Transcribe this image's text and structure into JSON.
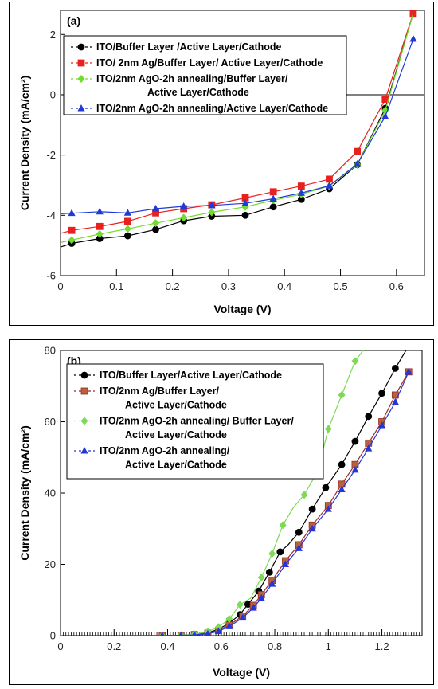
{
  "chart_data": [
    {
      "type": "line",
      "panel_label": "(a)",
      "xlabel": "Voltage (V)",
      "ylabel": "Current Density (mA/cm²)",
      "xlim": [
        0,
        0.65
      ],
      "ylim": [
        -6,
        2.8
      ],
      "xticks": [
        0,
        0.1,
        0.2,
        0.3,
        0.4,
        0.5,
        0.6
      ],
      "xtick_labels": [
        "0",
        "0.1",
        "0.2",
        "0.3",
        "0.4",
        "0.5",
        "0.6"
      ],
      "yticks": [
        -6,
        -4,
        -2,
        0,
        2
      ],
      "ytick_labels": [
        "-6",
        "-4",
        "-2",
        "0",
        "2"
      ],
      "zero_line": true,
      "legend_position": "top-right",
      "series": [
        {
          "name": "ITO/Buffer Layer /Active Layer/Cathode",
          "name_lines": [
            "ITO/Buffer Layer /Active Layer/Cathode"
          ],
          "color": "#000000",
          "marker": "circle",
          "x": [
            0,
            0.02,
            0.07,
            0.12,
            0.17,
            0.22,
            0.27,
            0.33,
            0.38,
            0.43,
            0.48,
            0.53,
            0.58,
            0.63
          ],
          "y": [
            -5.05,
            -4.93,
            -4.77,
            -4.68,
            -4.47,
            -4.18,
            -4.03,
            -4.0,
            -3.72,
            -3.47,
            -3.12,
            -2.32,
            -0.45,
            2.7
          ],
          "markers": [
            false,
            true,
            true,
            true,
            true,
            true,
            true,
            true,
            true,
            true,
            true,
            true,
            true,
            false
          ]
        },
        {
          "name": "ITO/ 2nm Ag/Buffer Layer/ Active Layer/Cathode",
          "name_lines": [
            "ITO/ 2nm Ag/Buffer Layer/ Active Layer/Cathode"
          ],
          "color": "#e8201e",
          "marker": "square",
          "x": [
            0,
            0.02,
            0.07,
            0.12,
            0.17,
            0.22,
            0.27,
            0.33,
            0.38,
            0.43,
            0.48,
            0.53,
            0.58,
            0.63
          ],
          "y": [
            -4.6,
            -4.5,
            -4.37,
            -4.2,
            -3.92,
            -3.78,
            -3.65,
            -3.42,
            -3.22,
            -3.03,
            -2.8,
            -1.88,
            -0.15,
            2.7
          ],
          "markers": [
            false,
            true,
            true,
            true,
            true,
            true,
            true,
            true,
            true,
            true,
            true,
            true,
            true,
            true
          ]
        },
        {
          "name": "ITO/2nm AgO-2h annealing/Buffer Layer/ Active Layer/Cathode",
          "name_lines": [
            "ITO/2nm AgO-2h annealing/Buffer Layer/",
            "Active Layer/Cathode"
          ],
          "color": "#6fdc2e",
          "marker": "diamond",
          "x": [
            0,
            0.02,
            0.07,
            0.12,
            0.17,
            0.22,
            0.27,
            0.33,
            0.38,
            0.43,
            0.48,
            0.53,
            0.58,
            0.63
          ],
          "y": [
            -4.9,
            -4.82,
            -4.62,
            -4.45,
            -4.26,
            -4.08,
            -3.9,
            -3.72,
            -3.5,
            -3.3,
            -3.03,
            -2.32,
            -0.52,
            2.7
          ],
          "markers": [
            false,
            true,
            true,
            true,
            true,
            true,
            true,
            true,
            true,
            true,
            true,
            true,
            true,
            false
          ]
        },
        {
          "name": "ITO/2nm AgO-2h annealing/Active Layer/Cathode",
          "name_lines": [
            "ITO/2nm AgO-2h annealing/Active Layer/Cathode"
          ],
          "color": "#1f3ad8",
          "marker": "triangle",
          "x": [
            0,
            0.02,
            0.07,
            0.12,
            0.17,
            0.22,
            0.27,
            0.33,
            0.38,
            0.43,
            0.48,
            0.53,
            0.58,
            0.63
          ],
          "y": [
            -3.95,
            -3.93,
            -3.88,
            -3.92,
            -3.78,
            -3.7,
            -3.67,
            -3.6,
            -3.45,
            -3.26,
            -3.02,
            -2.3,
            -0.72,
            1.85
          ],
          "markers": [
            false,
            true,
            true,
            true,
            true,
            true,
            true,
            true,
            true,
            true,
            true,
            true,
            true,
            true
          ]
        }
      ]
    },
    {
      "type": "line",
      "panel_label": "(b)",
      "xlabel": "Voltage (V)",
      "ylabel": "Current Density (mA/cm²)",
      "xlim": [
        0,
        1.35
      ],
      "ylim": [
        0,
        80
      ],
      "xticks": [
        0,
        0.2,
        0.4,
        0.6,
        0.8,
        1.0,
        1.2
      ],
      "xtick_labels": [
        "0",
        "0.2",
        "0.4",
        "0.6",
        "0.8",
        "1",
        "1.2"
      ],
      "yticks": [
        0,
        20,
        40,
        60,
        80
      ],
      "ytick_labels": [
        "0",
        "20",
        "40",
        "60",
        "80"
      ],
      "zero_line": false,
      "legend_position": "top-left",
      "series": [
        {
          "name": "ITO/Buffer Layer/Active Layer/Cathode",
          "name_lines": [
            "ITO/Buffer Layer/Active Layer/Cathode"
          ],
          "color": "#000000",
          "marker": "circle",
          "x": [
            0.25,
            0.38,
            0.45,
            0.5,
            0.55,
            0.59,
            0.63,
            0.67,
            0.7,
            0.74,
            0.78,
            0.82,
            0.85,
            0.89,
            0.94,
            0.99,
            1.05,
            1.1,
            1.15,
            1.2,
            1.25,
            1.29
          ],
          "y": [
            0,
            0,
            0.1,
            0.3,
            0.8,
            1.8,
            3.5,
            5.9,
            8.8,
            12.5,
            17.8,
            23.5,
            25.5,
            29,
            35.5,
            41.5,
            48,
            54.5,
            61.5,
            68,
            75,
            80
          ],
          "markers": [
            false,
            true,
            true,
            true,
            true,
            true,
            true,
            true,
            true,
            true,
            true,
            true,
            false,
            true,
            true,
            true,
            true,
            true,
            true,
            true,
            true,
            false
          ]
        },
        {
          "name": "ITO/2nm Ag/Buffer Layer/ Active Layer/Cathode",
          "name_lines": [
            "ITO/2nm Ag/Buffer Layer/",
            "Active Layer/Cathode"
          ],
          "color": "#9c2b23",
          "marker_fill": "#b5623d",
          "marker": "square",
          "x": [
            0.25,
            0.38,
            0.45,
            0.5,
            0.55,
            0.59,
            0.63,
            0.68,
            0.72,
            0.75,
            0.79,
            0.84,
            0.89,
            0.94,
            1.0,
            1.05,
            1.1,
            1.15,
            1.2,
            1.25,
            1.3
          ],
          "y": [
            0,
            0,
            0.1,
            0.3,
            0.7,
            1.5,
            3.0,
            5.5,
            8.5,
            11.5,
            15.5,
            21,
            25.5,
            31,
            36.5,
            42.5,
            48,
            54,
            60,
            67.5,
            74
          ],
          "markers": [
            false,
            true,
            true,
            true,
            true,
            true,
            true,
            true,
            true,
            true,
            true,
            true,
            true,
            true,
            true,
            true,
            true,
            true,
            true,
            true,
            true
          ]
        },
        {
          "name": "ITO/2nm AgO-2h annealing/ Buffer Layer/ Active Layer/Cathode",
          "name_lines": [
            "ITO/2nm AgO-2h annealing/ Buffer Layer/",
            "Active Layer/Cathode"
          ],
          "color": "#7ed957",
          "marker": "diamond",
          "x": [
            0.25,
            0.38,
            0.45,
            0.5,
            0.55,
            0.59,
            0.63,
            0.67,
            0.71,
            0.75,
            0.79,
            0.83,
            0.87,
            0.91,
            0.96,
            1.0,
            1.05,
            1.1,
            1.13
          ],
          "y": [
            0,
            0,
            0.1,
            0.4,
            1.1,
            2.4,
            4.7,
            8.7,
            10.5,
            16.3,
            23,
            31,
            36,
            39.5,
            46,
            58,
            67.5,
            77,
            80
          ],
          "markers": [
            false,
            true,
            true,
            true,
            true,
            true,
            true,
            true,
            false,
            true,
            true,
            true,
            false,
            true,
            false,
            true,
            true,
            true,
            false
          ]
        },
        {
          "name": "ITO/2nm AgO-2h annealing/ Active Layer/Cathode",
          "name_lines": [
            "ITO/2nm AgO-2h annealing/",
            "Active Layer/Cathode"
          ],
          "color": "#2436d8",
          "marker": "triangle",
          "x": [
            0.25,
            0.38,
            0.45,
            0.5,
            0.55,
            0.59,
            0.63,
            0.68,
            0.72,
            0.75,
            0.79,
            0.84,
            0.89,
            0.94,
            1.0,
            1.05,
            1.1,
            1.15,
            1.2,
            1.25,
            1.3
          ],
          "y": [
            0,
            0,
            0.1,
            0.2,
            0.5,
            1.2,
            2.6,
            5.0,
            7.8,
            10.5,
            14.5,
            20,
            24.5,
            30,
            35.5,
            41,
            46.5,
            52.5,
            59,
            65.5,
            74
          ],
          "markers": [
            false,
            true,
            true,
            true,
            true,
            true,
            true,
            true,
            true,
            true,
            true,
            true,
            true,
            true,
            true,
            true,
            true,
            true,
            true,
            true,
            true
          ]
        }
      ]
    }
  ]
}
